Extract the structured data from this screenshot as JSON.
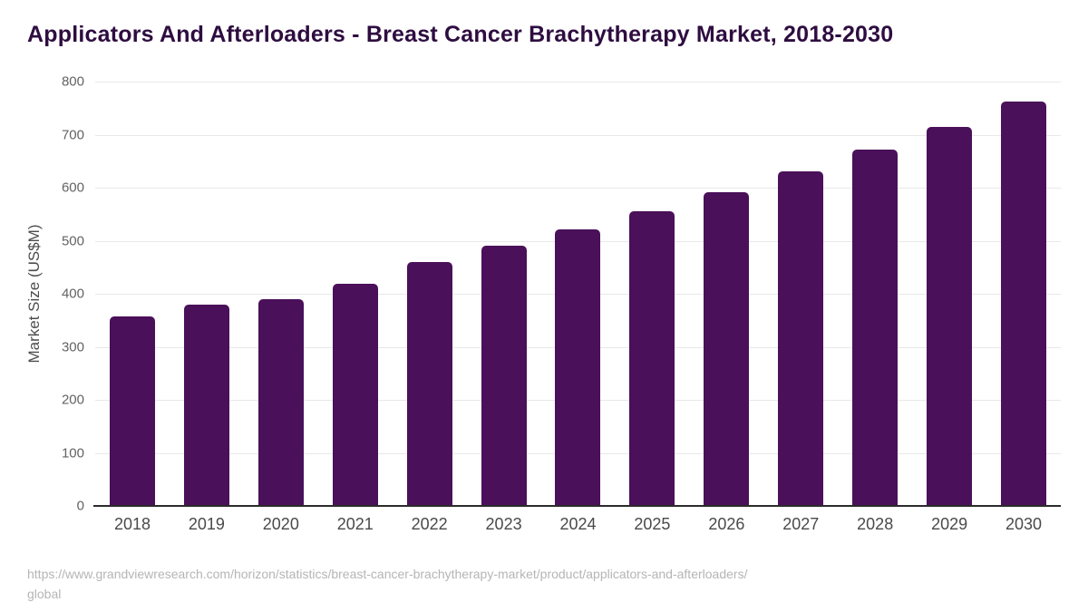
{
  "page": {
    "title": "Applicators And Afterloaders - Breast Cancer Brachytherapy Market, 2018-2030",
    "source_line1": "https://www.grandviewresearch.com/horizon/statistics/breast-cancer-brachytherapy-market/product/applicators-and-afterloaders/",
    "source_line2": "global"
  },
  "chart_data": {
    "type": "bar",
    "title": "Applicators And Afterloaders - Breast Cancer Brachytherapy Market, 2018-2030",
    "categories": [
      "2018",
      "2019",
      "2020",
      "2021",
      "2022",
      "2023",
      "2024",
      "2025",
      "2026",
      "2027",
      "2028",
      "2029",
      "2030"
    ],
    "values": [
      358,
      380,
      390,
      419,
      460,
      490,
      521,
      556,
      591,
      631,
      672,
      714,
      762
    ],
    "xlabel": "",
    "ylabel": "Market Size (US$M)",
    "ylim": [
      0,
      800
    ],
    "yticks": [
      0,
      100,
      200,
      300,
      400,
      500,
      600,
      700,
      800
    ],
    "grid": "horizontal",
    "legend_position": "none",
    "bar_color": "#4a1059"
  },
  "colors": {
    "title_text": "#2e0d40",
    "bar": "#4a1059",
    "axis_line": "#2b2b2b",
    "gridline": "#e8e8e8",
    "y_tick_label": "#636363",
    "x_tick_label": "#4a4a4a",
    "axis_title": "#4d4d4d",
    "source_text": "#b5b5b5",
    "background": "#ffffff"
  }
}
